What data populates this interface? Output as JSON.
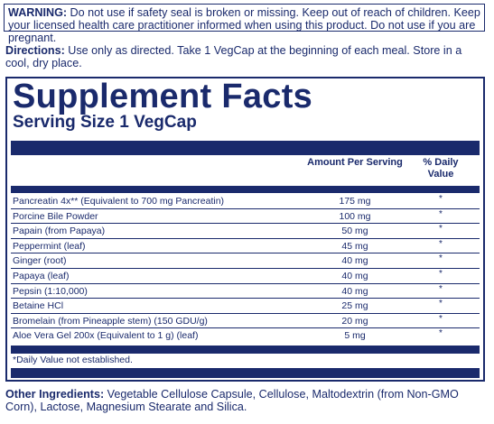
{
  "warning": {
    "label": "WARNING:",
    "text": " Do not use if safety seal is broken or missing. Keep out of reach of children. Keep your licensed health care practitioner informed when using this product. Do not use if you are pregnant."
  },
  "directions": {
    "label": "Directions:",
    "text": " Use only as directed. Take 1 VegCap at the beginning of each meal. Store in a cool, dry place."
  },
  "supplement_facts": {
    "title": "Supplement Facts",
    "serving_size": "Serving Size 1 VegCap",
    "col_amount": "Amount Per Serving",
    "col_dv": "% Daily Value",
    "footnote": "*Daily Value not established.",
    "rows": [
      {
        "name": "Pancreatin 4x** (Equivalent to 700 mg Pancreatin)",
        "amount": "175 mg",
        "dv": "*"
      },
      {
        "name": "Porcine Bile Powder",
        "amount": "100 mg",
        "dv": "*"
      },
      {
        "name": "Papain (from Papaya)",
        "amount": "50 mg",
        "dv": "*"
      },
      {
        "name": "Peppermint (leaf)",
        "amount": "45 mg",
        "dv": "*"
      },
      {
        "name": "Ginger (root)",
        "amount": "40 mg",
        "dv": "*"
      },
      {
        "name": "Papaya (leaf)",
        "amount": "40 mg",
        "dv": "*"
      },
      {
        "name": "Pepsin (1:10,000)",
        "amount": "40 mg",
        "dv": "*"
      },
      {
        "name": "Betaine HCl",
        "amount": "25 mg",
        "dv": "*"
      },
      {
        "name": "Bromelain (from Pineapple stem) (150 GDU/g)",
        "amount": "20 mg",
        "dv": "*"
      },
      {
        "name": "Aloe Vera Gel 200x (Equivalent to 1 g) (leaf)",
        "amount": "5 mg",
        "dv": "*"
      }
    ]
  },
  "other_ingredients": {
    "label": "Other Ingredients:",
    "text": " Vegetable Cellulose Capsule, Cellulose, Maltodextrin (from Non-GMO Corn), Lactose, Magnesium Stearate and Silica."
  },
  "colors": {
    "navy": "#1a2a6c"
  }
}
